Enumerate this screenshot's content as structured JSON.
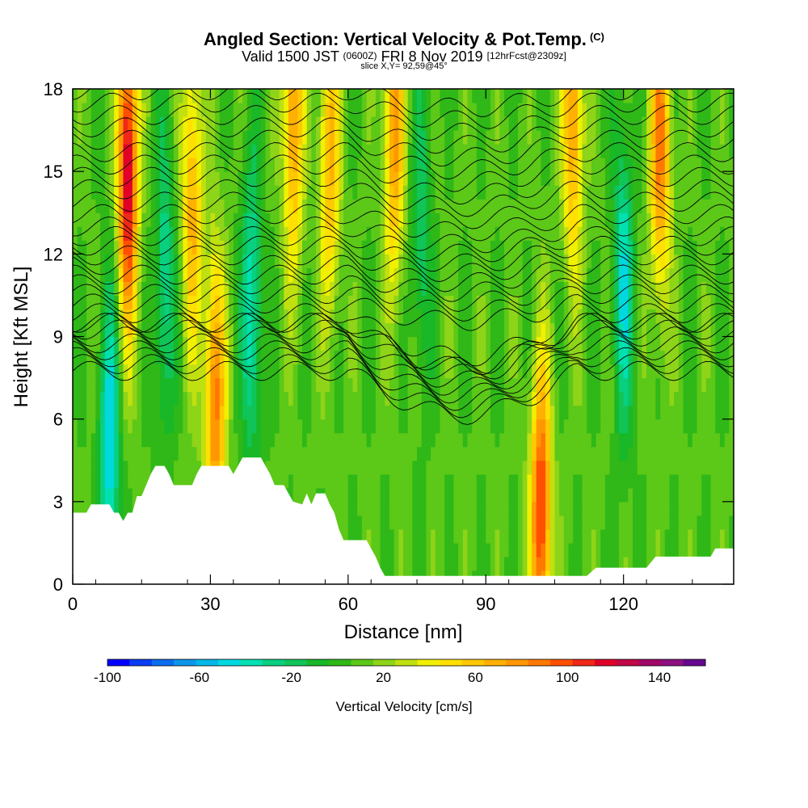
{
  "header": {
    "title": "Angled Section: Vertical Velocity & Pot.Temp.",
    "title_unit": "(C)",
    "valid_prefix": "Valid 1500 JST",
    "valid_utc": "(0600Z)",
    "valid_date": "FRI 8 Nov 2019",
    "forecast": "[12hrFcst@2309z]",
    "slice": "slice X,Y= 92,59@45°"
  },
  "chart_data": {
    "type": "heatmap",
    "xlabel": "Distance [nm]",
    "ylabel": "Height [Kft MSL]",
    "xlim": [
      0,
      144
    ],
    "ylim": [
      0,
      18
    ],
    "x_ticks": [
      0,
      30,
      60,
      90,
      120
    ],
    "y_ticks": [
      0,
      3,
      6,
      9,
      12,
      15,
      18
    ],
    "colorbar": {
      "label": "Vertical Velocity [cm/s]",
      "min": -100,
      "max": 160,
      "tick_values": [
        -100,
        -60,
        -20,
        20,
        60,
        100,
        140
      ],
      "colors": [
        "#0000ff",
        "#0a3ef4",
        "#0d6cef",
        "#0c96e9",
        "#00b8e8",
        "#00d8e0",
        "#00e0b0",
        "#08d080",
        "#10c458",
        "#18b828",
        "#2fb818",
        "#5cc818",
        "#8ed418",
        "#c0e010",
        "#f0f000",
        "#ffe000",
        "#ffc800",
        "#ffb000",
        "#ff9800",
        "#ff7800",
        "#ff5000",
        "#f02818",
        "#e00028",
        "#c00848",
        "#a00868",
        "#8c1080",
        "#640890"
      ]
    },
    "terrain_profile_kft": [
      [
        0,
        2.6
      ],
      [
        3,
        2.6
      ],
      [
        4,
        2.9
      ],
      [
        8,
        2.9
      ],
      [
        9,
        2.6
      ],
      [
        10,
        2.6
      ],
      [
        11,
        2.3
      ],
      [
        12,
        2.6
      ],
      [
        13,
        2.6
      ],
      [
        14,
        3.2
      ],
      [
        15,
        3.2
      ],
      [
        16,
        3.6
      ],
      [
        17,
        4.0
      ],
      [
        18,
        4.3
      ],
      [
        20,
        4.3
      ],
      [
        21,
        4.0
      ],
      [
        22,
        3.6
      ],
      [
        26,
        3.6
      ],
      [
        27,
        4.0
      ],
      [
        28,
        4.3
      ],
      [
        34,
        4.3
      ],
      [
        35,
        4.0
      ],
      [
        36,
        4.3
      ],
      [
        37,
        4.6
      ],
      [
        41,
        4.6
      ],
      [
        42,
        4.3
      ],
      [
        43,
        4.0
      ],
      [
        44,
        3.6
      ],
      [
        46,
        3.6
      ],
      [
        47,
        3.3
      ],
      [
        48,
        3.0
      ],
      [
        50,
        2.9
      ],
      [
        51,
        3.3
      ],
      [
        52,
        2.9
      ],
      [
        53,
        3.3
      ],
      [
        55,
        3.3
      ],
      [
        56,
        2.9
      ],
      [
        57,
        2.6
      ],
      [
        58,
        2.0
      ],
      [
        59,
        1.6
      ],
      [
        64,
        1.6
      ],
      [
        65,
        1.3
      ],
      [
        66,
        1.0
      ],
      [
        67,
        0.6
      ],
      [
        68,
        0.3
      ],
      [
        112,
        0.3
      ],
      [
        114,
        0.6
      ],
      [
        125,
        0.6
      ],
      [
        127,
        1.0
      ],
      [
        139,
        1.0
      ],
      [
        140,
        1.3
      ],
      [
        144,
        1.3
      ]
    ],
    "updraft_cells": [
      {
        "x": 12,
        "z": 15.0,
        "w": 120
      },
      {
        "x": 26,
        "z": 14.0,
        "w": 60
      },
      {
        "x": 31,
        "z": 6.5,
        "w": 80
      },
      {
        "x": 48,
        "z": 17.0,
        "w": 70
      },
      {
        "x": 56,
        "z": 15.5,
        "w": 60
      },
      {
        "x": 70,
        "z": 16.5,
        "w": 70
      },
      {
        "x": 102,
        "z": 2.5,
        "w": 100
      },
      {
        "x": 109,
        "z": 17.0,
        "w": 70
      },
      {
        "x": 128,
        "z": 16.0,
        "w": 80
      }
    ],
    "downdraft_cells": [
      {
        "x": 8,
        "z": 5.0,
        "w": -60
      },
      {
        "x": 20,
        "z": 11.0,
        "w": -40
      },
      {
        "x": 39,
        "z": 10.0,
        "w": -50
      },
      {
        "x": 76,
        "z": 13.0,
        "w": -30
      },
      {
        "x": 120,
        "z": 11.0,
        "w": -50
      }
    ]
  }
}
